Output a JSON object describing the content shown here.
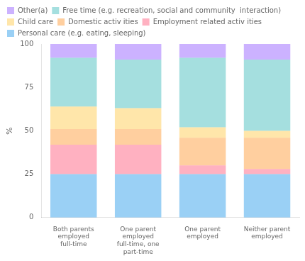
{
  "chart_data": {
    "type": "bar",
    "stacked": true,
    "categories": [
      "Both parents\nemployed\nfull-time",
      "One parent\nemployed\nfull-time, one\npart-time",
      "One parent\nemployed",
      "Neither parent\nemployed"
    ],
    "series": [
      {
        "name": "Personal care (e.g. eating, sleeping)",
        "values": [
          25,
          25,
          25,
          25
        ]
      },
      {
        "name": "Employment related activ ities",
        "values": [
          17,
          17,
          5,
          3
        ]
      },
      {
        "name": "Domestic activ ities",
        "values": [
          9,
          9,
          16,
          18
        ]
      },
      {
        "name": "Child care",
        "values": [
          13,
          12,
          6,
          4
        ]
      },
      {
        "name": "Free time (e.g. recreation, social and community  interaction)",
        "values": [
          28,
          28,
          40,
          41
        ]
      },
      {
        "name": "Other(a)",
        "values": [
          8,
          9,
          8,
          9
        ]
      }
    ],
    "ylabel": "%",
    "ylim": [
      0,
      100
    ],
    "yticks": [
      0,
      25,
      50,
      75,
      100
    ],
    "grid": false,
    "legend": "top"
  }
}
